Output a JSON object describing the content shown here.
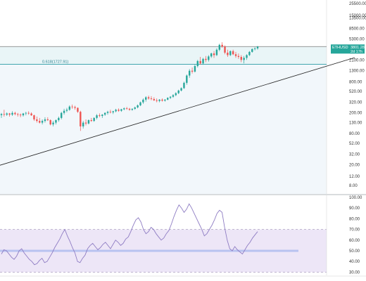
{
  "chart_data": [
    {
      "type": "candlestick",
      "y_scale": "log",
      "ylim": [
        5.5,
        30000
      ],
      "y_ticks": [
        "25500.00",
        "15000.00",
        "13500.00",
        "8500.00",
        "5300.00",
        "3400.00",
        "2100.00",
        "1300.00",
        "800.00",
        "520.00",
        "320.00",
        "200.00",
        "130.00",
        "80.00",
        "52.00",
        "32.00",
        "20.00",
        "12.00",
        "8.00"
      ],
      "y_tick_values": [
        25500,
        15000,
        13500,
        8500,
        5300,
        3400,
        2100,
        1300,
        800,
        520,
        320,
        200,
        130,
        80,
        52,
        32,
        20,
        12,
        8
      ],
      "symbol_tag": "ETHUSD",
      "price_tag": "3801.28",
      "time_tag": "2d 17h",
      "fib_label": "0.618(1727.91)",
      "fib_value": 1727.91,
      "horizontal_level": 3800,
      "trendline": {
        "from_index": 0,
        "from_value": 20,
        "to_index": 172,
        "to_value": 11000
      },
      "candles": [
        [
          181,
          200,
          160,
          190
        ],
        [
          190,
          230,
          170,
          185
        ],
        [
          185,
          205,
          175,
          195
        ],
        [
          195,
          200,
          170,
          185
        ],
        [
          185,
          215,
          175,
          200
        ],
        [
          200,
          210,
          180,
          190
        ],
        [
          190,
          200,
          170,
          185
        ],
        [
          185,
          195,
          165,
          180
        ],
        [
          180,
          200,
          170,
          195
        ],
        [
          195,
          210,
          180,
          200
        ],
        [
          200,
          215,
          185,
          195
        ],
        [
          195,
          205,
          175,
          180
        ],
        [
          180,
          185,
          140,
          150
        ],
        [
          150,
          170,
          130,
          140
        ],
        [
          140,
          160,
          125,
          130
        ],
        [
          130,
          150,
          120,
          140
        ],
        [
          140,
          165,
          130,
          150
        ],
        [
          150,
          165,
          140,
          145
        ],
        [
          145,
          150,
          115,
          120
        ],
        [
          120,
          140,
          110,
          130
        ],
        [
          130,
          150,
          120,
          145
        ],
        [
          145,
          170,
          135,
          160
        ],
        [
          160,
          210,
          150,
          200
        ],
        [
          200,
          240,
          185,
          220
        ],
        [
          220,
          250,
          205,
          230
        ],
        [
          230,
          280,
          220,
          265
        ],
        [
          265,
          290,
          240,
          260
        ],
        [
          260,
          275,
          230,
          250
        ],
        [
          250,
          255,
          200,
          210
        ],
        [
          210,
          220,
          90,
          110
        ],
        [
          110,
          140,
          100,
          130
        ],
        [
          130,
          150,
          115,
          125
        ],
        [
          125,
          150,
          120,
          145
        ],
        [
          145,
          160,
          135,
          140
        ],
        [
          140,
          165,
          135,
          160
        ],
        [
          160,
          190,
          150,
          180
        ],
        [
          180,
          195,
          165,
          175
        ],
        [
          175,
          190,
          160,
          185
        ],
        [
          185,
          205,
          175,
          200
        ],
        [
          200,
          220,
          185,
          210
        ],
        [
          210,
          230,
          195,
          205
        ],
        [
          205,
          220,
          190,
          215
        ],
        [
          215,
          240,
          205,
          230
        ],
        [
          230,
          245,
          210,
          220
        ],
        [
          220,
          240,
          210,
          235
        ],
        [
          235,
          255,
          225,
          245
        ],
        [
          245,
          260,
          230,
          240
        ],
        [
          240,
          250,
          220,
          230
        ],
        [
          230,
          245,
          220,
          240
        ],
        [
          240,
          265,
          230,
          255
        ],
        [
          255,
          290,
          245,
          280
        ],
        [
          280,
          330,
          270,
          320
        ],
        [
          320,
          380,
          300,
          360
        ],
        [
          360,
          420,
          330,
          400
        ],
        [
          400,
          430,
          360,
          380
        ],
        [
          380,
          420,
          350,
          370
        ],
        [
          370,
          400,
          340,
          350
        ],
        [
          350,
          380,
          320,
          340
        ],
        [
          340,
          370,
          320,
          360
        ],
        [
          360,
          380,
          330,
          345
        ],
        [
          345,
          370,
          330,
          360
        ],
        [
          360,
          400,
          350,
          390
        ],
        [
          390,
          420,
          370,
          410
        ],
        [
          410,
          460,
          390,
          440
        ],
        [
          440,
          500,
          420,
          480
        ],
        [
          480,
          560,
          460,
          540
        ],
        [
          540,
          620,
          520,
          600
        ],
        [
          600,
          800,
          580,
          760
        ],
        [
          760,
          1100,
          700,
          1050
        ],
        [
          1050,
          1400,
          950,
          1300
        ],
        [
          1300,
          1500,
          1150,
          1250
        ],
        [
          1250,
          1700,
          1200,
          1600
        ],
        [
          1600,
          2100,
          1500,
          2000
        ],
        [
          2000,
          2400,
          1700,
          1800
        ],
        [
          1800,
          2300,
          1700,
          2200
        ],
        [
          2200,
          2500,
          1900,
          2100
        ],
        [
          2100,
          2600,
          1950,
          2450
        ],
        [
          2450,
          2900,
          2300,
          2800
        ],
        [
          2800,
          3100,
          2300,
          2600
        ],
        [
          2600,
          3500,
          2500,
          3300
        ],
        [
          3300,
          4300,
          3100,
          4100
        ],
        [
          4100,
          4600,
          3600,
          3800
        ],
        [
          3800,
          4000,
          2700,
          2900
        ],
        [
          2900,
          3300,
          2400,
          2600
        ],
        [
          2600,
          3200,
          2500,
          3100
        ],
        [
          3100,
          3300,
          2600,
          2700
        ],
        [
          2700,
          3000,
          2300,
          2500
        ],
        [
          2500,
          2800,
          2200,
          2400
        ],
        [
          2400,
          2600,
          1900,
          2100
        ],
        [
          2100,
          2500,
          1800,
          2300
        ],
        [
          2300,
          2700,
          2100,
          2600
        ],
        [
          2600,
          3100,
          2500,
          3000
        ],
        [
          3000,
          3500,
          2900,
          3400
        ],
        [
          3400,
          3700,
          3200,
          3500
        ],
        [
          3500,
          3900,
          3300,
          3800
        ]
      ]
    },
    {
      "type": "line",
      "y_ticks": [
        "100.00",
        "90.00",
        "80.00",
        "70.00",
        "60.00",
        "50.00",
        "40.00",
        "30.00"
      ],
      "y_tick_values": [
        100,
        90,
        80,
        70,
        60,
        50,
        40,
        30
      ],
      "ylim": [
        27,
        102
      ],
      "band": [
        30,
        70
      ],
      "mid_band": [
        49,
        51
      ],
      "values": [
        47,
        51,
        50,
        47,
        44,
        42,
        45,
        50,
        52,
        48,
        45,
        42,
        40,
        37,
        38,
        41,
        43,
        39,
        40,
        44,
        48,
        53,
        57,
        61,
        66,
        70,
        64,
        59,
        53,
        48,
        40,
        39,
        43,
        46,
        52,
        55,
        57,
        54,
        51,
        53,
        56,
        58,
        55,
        52,
        56,
        60,
        58,
        55,
        57,
        61,
        63,
        68,
        74,
        79,
        81,
        77,
        70,
        66,
        68,
        72,
        70,
        66,
        63,
        60,
        62,
        66,
        69,
        75,
        82,
        88,
        93,
        90,
        86,
        89,
        94,
        90,
        85,
        80,
        75,
        70,
        64,
        66,
        70,
        74,
        79,
        85,
        88,
        86,
        72,
        60,
        52,
        50,
        54,
        51,
        49,
        47,
        51,
        55,
        58,
        62,
        65,
        68
      ]
    }
  ]
}
